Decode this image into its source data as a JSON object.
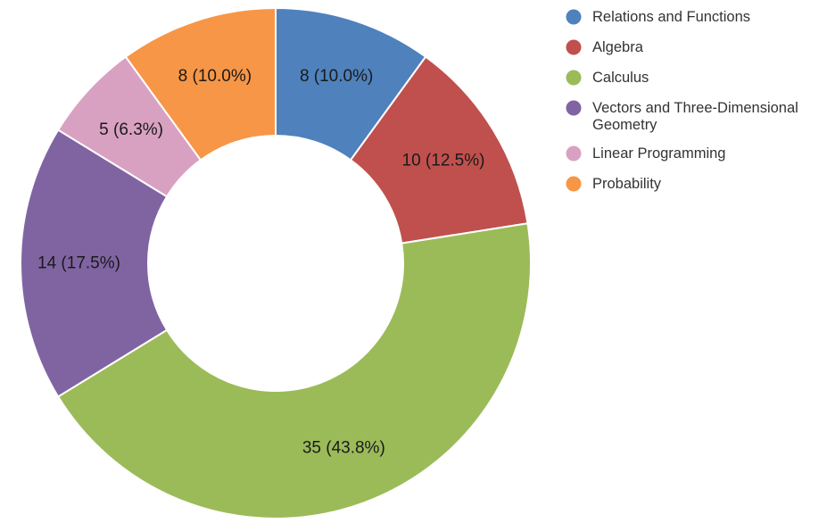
{
  "chart_data": {
    "type": "pie",
    "donut": true,
    "categories": [
      "Relations and Functions",
      "Algebra",
      "Calculus",
      "Vectors and Three-Dimensional Geometry",
      "Linear Programming",
      "Probability"
    ],
    "values": [
      8,
      10,
      35,
      14,
      5,
      8
    ],
    "data_labels": [
      "8 (10.0%)",
      "10 (12.5%)",
      "35 (43.8%)",
      "14 (17.5%)",
      "5 (6.3%)",
      "8 (10.0%)"
    ],
    "legend": [
      {
        "lines": [
          "Relations and Functions"
        ]
      },
      {
        "lines": [
          "Algebra"
        ]
      },
      {
        "lines": [
          "Calculus"
        ]
      },
      {
        "lines": [
          "Vectors and Three-Dimensional",
          "Geometry"
        ]
      },
      {
        "lines": [
          "Linear Programming"
        ]
      },
      {
        "lines": [
          "Probability"
        ]
      }
    ],
    "colors": [
      "#4f81bd",
      "#c0504d",
      "#9bbb59",
      "#8064a2",
      "#d9a1c1",
      "#f79646"
    ],
    "legend_position": "top-right",
    "title": ""
  }
}
